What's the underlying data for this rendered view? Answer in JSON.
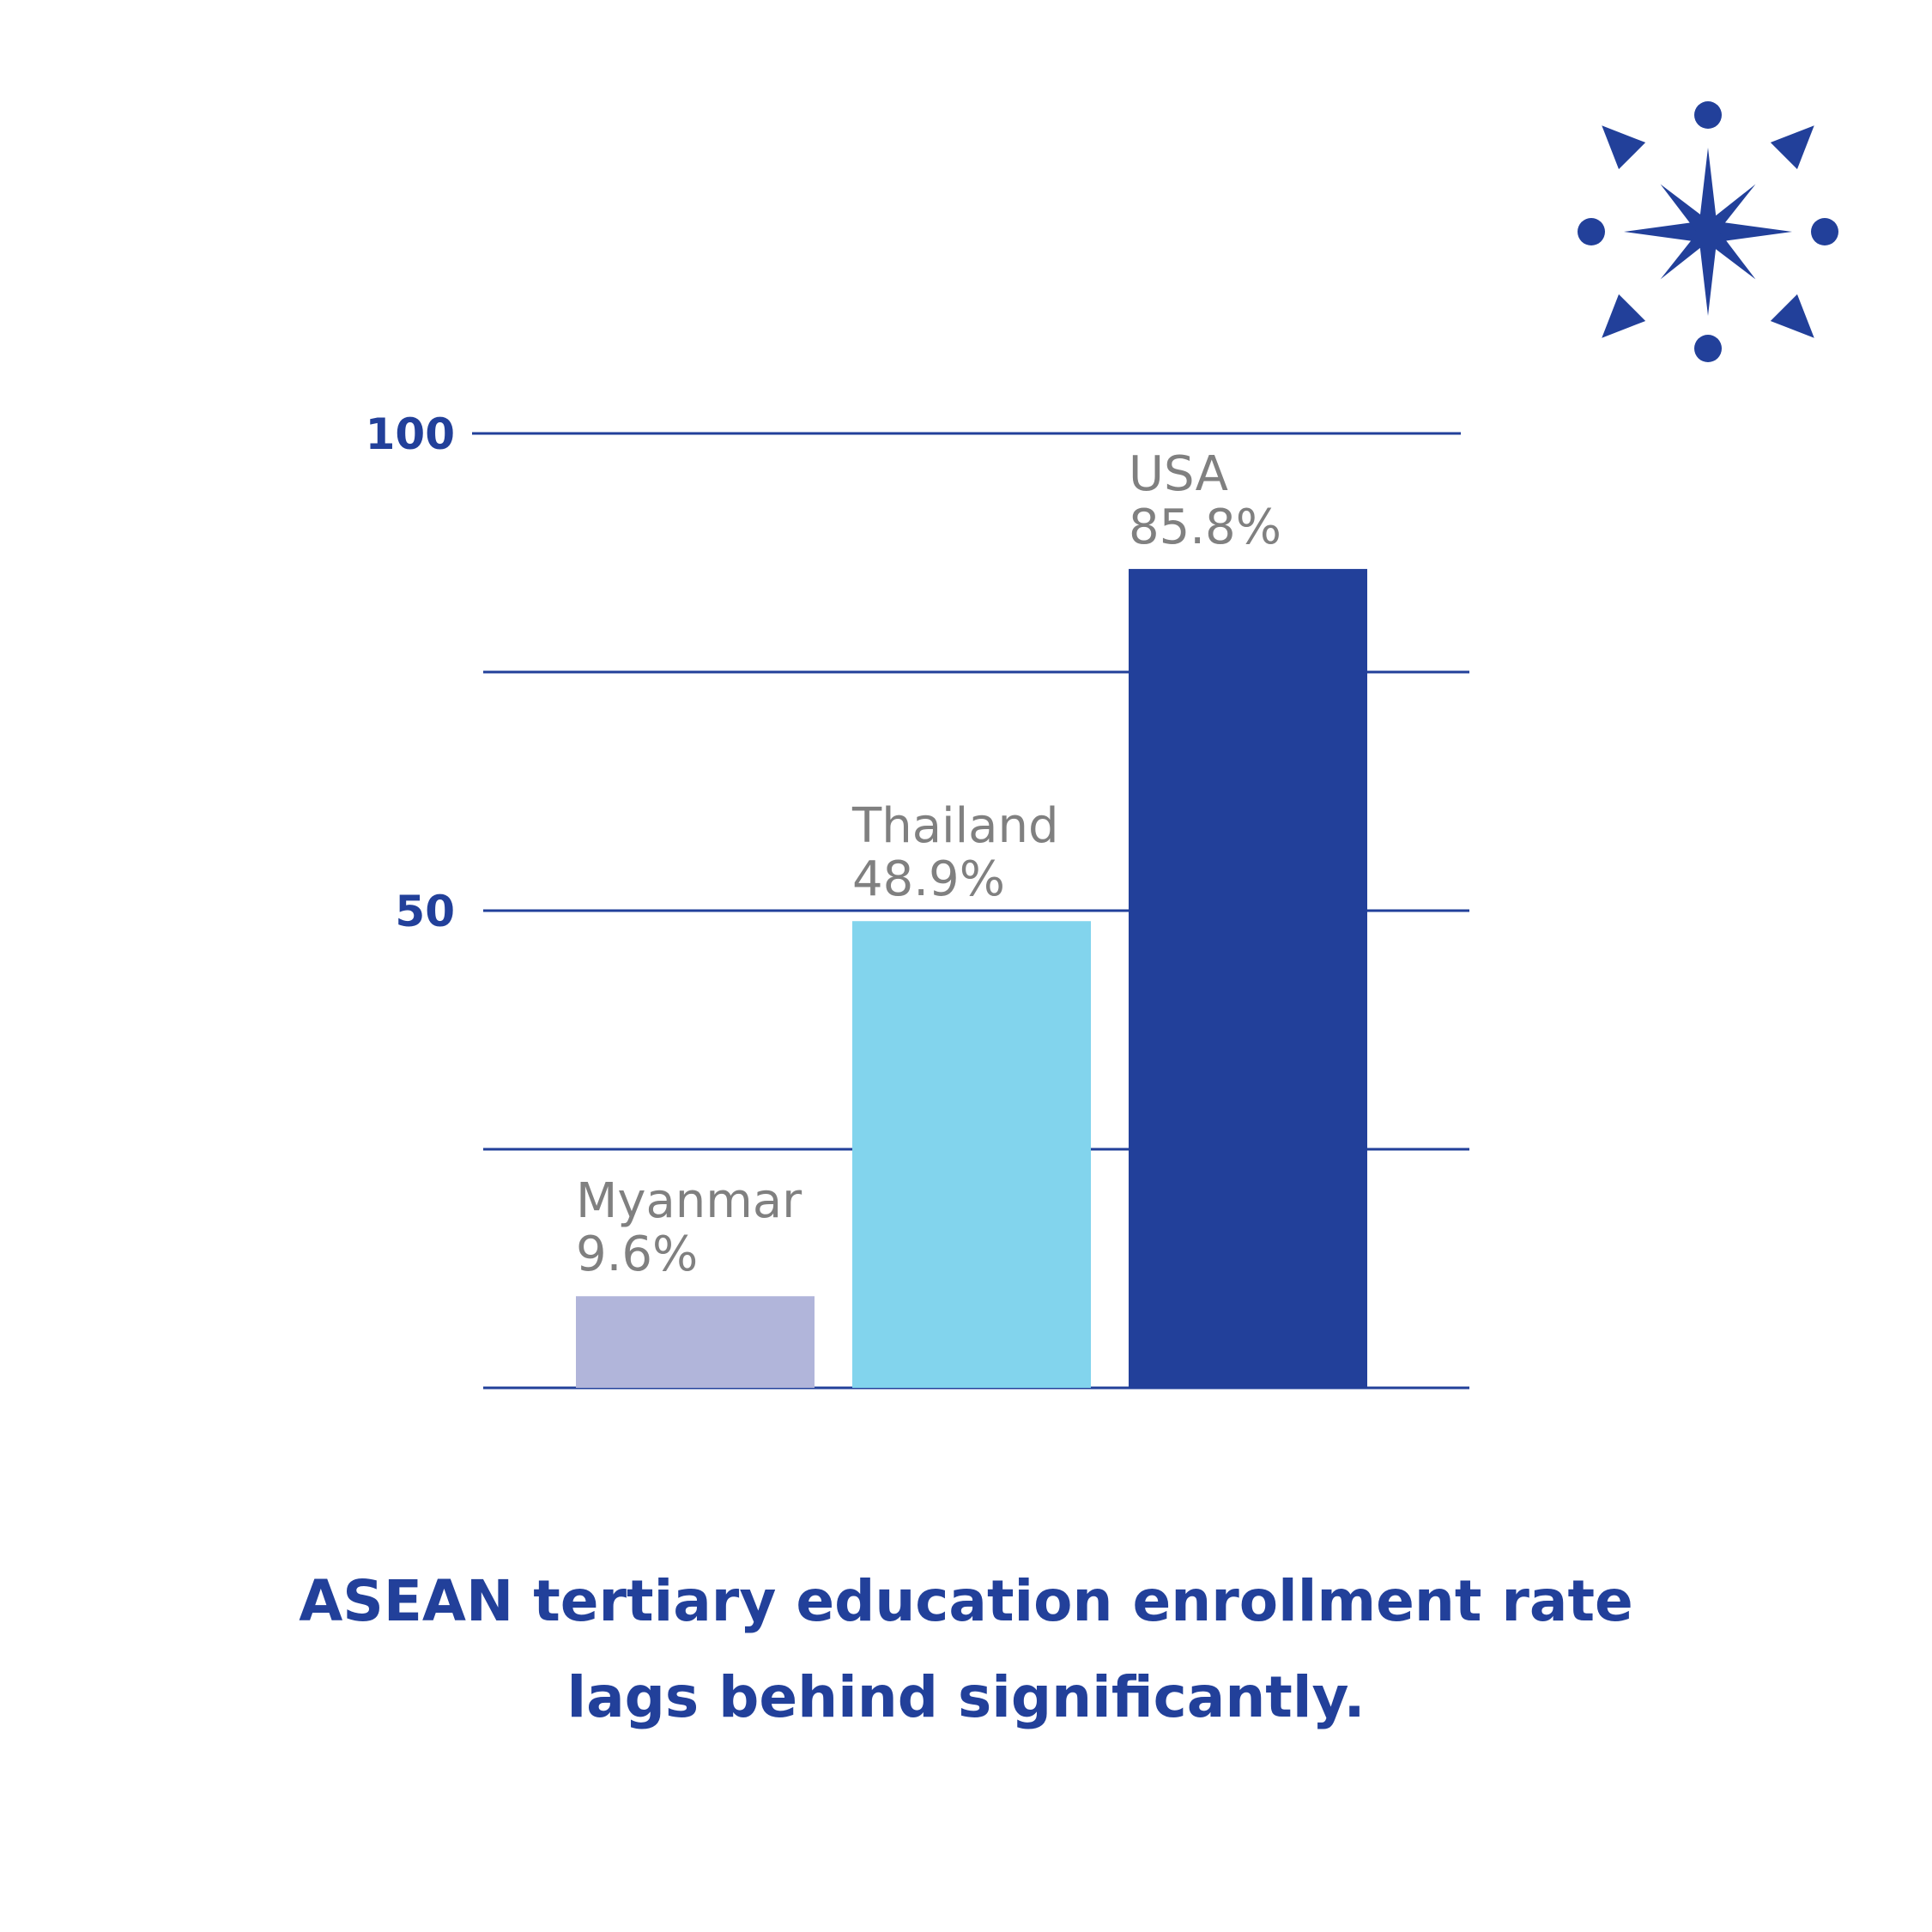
{
  "colors": {
    "accent": "#22409a",
    "label_gray": "#808080",
    "myanmar": "#b1b5da",
    "thailand": "#82d4ed",
    "usa": "#22409a"
  },
  "logo_icon": "starburst-icon",
  "caption_lines": [
    "ASEAN tertiary education enrollment rate",
    "lags behind significantly."
  ],
  "chart_data": {
    "type": "bar",
    "title": "",
    "xlabel": "",
    "ylabel": "",
    "ylim": [
      0,
      100
    ],
    "yticks": [
      0,
      25,
      50,
      75,
      100
    ],
    "ytick_labels": [
      "",
      "",
      "50",
      "",
      "100"
    ],
    "grid": true,
    "categories": [
      "Myanmar",
      "Thailand",
      "USA"
    ],
    "values": [
      9.6,
      48.9,
      85.8
    ],
    "value_labels": [
      "9.6%",
      "48.9%",
      "85.8%"
    ],
    "bar_colors": [
      "#b1b5da",
      "#82d4ed",
      "#22409a"
    ]
  }
}
